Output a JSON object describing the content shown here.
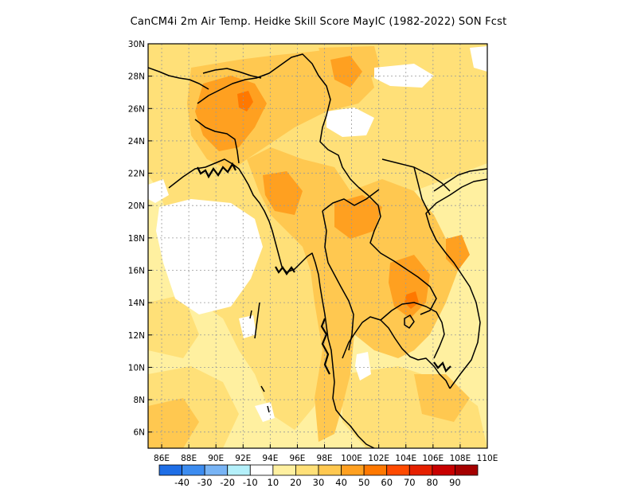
{
  "title": "CanCM4i 2m Air Temp. Heidke Skill Score MayIC (1982-2022) SON Fcst",
  "map": {
    "lon_ticks": [
      "86E",
      "88E",
      "90E",
      "92E",
      "94E",
      "96E",
      "98E",
      "100E",
      "102E",
      "104E",
      "106E",
      "108E",
      "110E"
    ],
    "lat_ticks": [
      "30N",
      "28N",
      "26N",
      "24N",
      "22N",
      "20N",
      "18N",
      "16N",
      "14N",
      "12N",
      "10N",
      "8N",
      "6N"
    ]
  },
  "colorbar": {
    "colors": [
      "#1e6ee6",
      "#3c8cf0",
      "#78b4f5",
      "#b4f0fa",
      "#ffffff",
      "#fff0a0",
      "#ffe078",
      "#ffc850",
      "#ffa020",
      "#ff7800",
      "#ff4a00",
      "#e62000",
      "#c80000",
      "#a50000"
    ],
    "labels": [
      "-40",
      "-30",
      "-20",
      "-10",
      "10",
      "20",
      "30",
      "40",
      "50",
      "60",
      "70",
      "80",
      "90"
    ]
  }
}
